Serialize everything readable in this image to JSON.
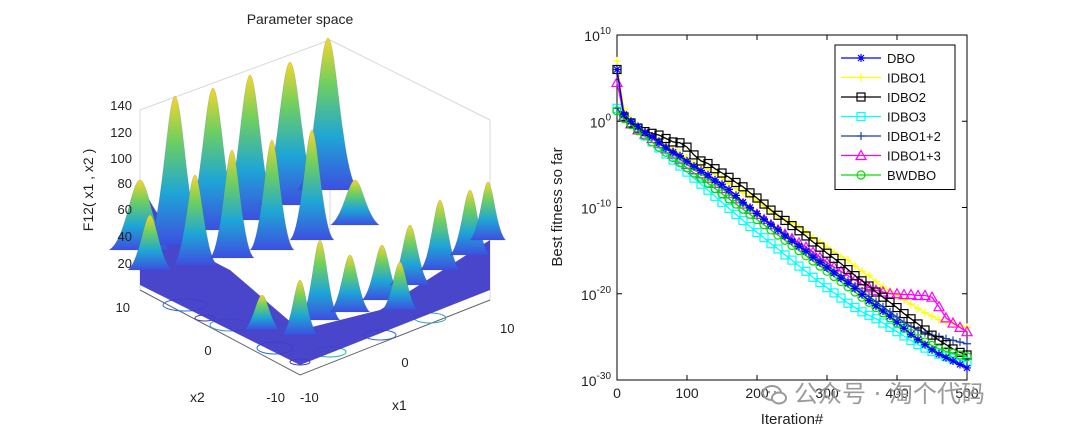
{
  "chart_data": [
    {
      "type": "surface3d",
      "title": "Parameter space",
      "zlabel": "F12( x1 , x2 )",
      "xlabel": "x1",
      "ylabel": "x2",
      "z_ticks": [
        20,
        40,
        60,
        80,
        100,
        120,
        140
      ],
      "x_ticks": [
        -10,
        0,
        10
      ],
      "y_ticks": [
        -10,
        0,
        10
      ],
      "zlim": [
        0,
        150
      ],
      "colormap": "parula",
      "contours_on_floor": true
    },
    {
      "type": "line",
      "yscale": "log",
      "xlabel": "Iteration#",
      "ylabel": "Best fitness so far",
      "xlim": [
        0,
        500
      ],
      "ylim_exp": [
        -30,
        10
      ],
      "x_ticks": [
        0,
        100,
        200,
        300,
        400,
        500
      ],
      "y_ticks": [
        {
          "base": "10",
          "exp": "10"
        },
        {
          "base": "10",
          "exp": "0"
        },
        {
          "base": "10",
          "exp": "-10"
        },
        {
          "base": "10",
          "exp": "-20"
        },
        {
          "base": "10",
          "exp": "-30"
        }
      ],
      "legend_position": "top-right",
      "x": [
        0,
        10,
        20,
        30,
        40,
        50,
        60,
        70,
        80,
        90,
        100,
        110,
        120,
        130,
        140,
        150,
        160,
        170,
        180,
        190,
        200,
        210,
        220,
        230,
        240,
        250,
        260,
        270,
        280,
        290,
        300,
        310,
        320,
        330,
        340,
        350,
        360,
        370,
        380,
        390,
        400,
        410,
        420,
        430,
        440,
        450,
        460,
        470,
        480,
        490,
        500
      ],
      "series": [
        {
          "name": "DBO",
          "color": "#0000ff",
          "marker": "star",
          "log10_values": [
            6.0,
            0.8,
            0.0,
            -0.6,
            -1.3,
            -1.8,
            -2.5,
            -3.1,
            -3.6,
            -4.0,
            -4.6,
            -5.2,
            -5.7,
            -6.2,
            -6.8,
            -7.3,
            -7.9,
            -8.6,
            -9.4,
            -10.0,
            -10.7,
            -11.4,
            -12.0,
            -12.6,
            -13.3,
            -13.9,
            -14.5,
            -15.1,
            -15.8,
            -16.4,
            -17.0,
            -17.6,
            -18.2,
            -18.8,
            -19.4,
            -20.1,
            -20.8,
            -21.4,
            -22.0,
            -22.6,
            -23.3,
            -24.0,
            -24.7,
            -25.3,
            -25.9,
            -26.5,
            -27.0,
            -27.4,
            -27.8,
            -28.2,
            -28.6
          ]
        },
        {
          "name": "IDBO1",
          "color": "#ffff00",
          "marker": "plus",
          "log10_values": [
            7.0,
            1.4,
            0.3,
            -0.5,
            -1.1,
            -1.7,
            -2.2,
            -2.7,
            -3.2,
            -3.7,
            -4.2,
            -4.8,
            -5.2,
            -5.6,
            -6.1,
            -6.6,
            -7.2,
            -7.8,
            -8.3,
            -8.7,
            -9.2,
            -9.8,
            -10.4,
            -11.0,
            -11.4,
            -11.8,
            -12.3,
            -12.9,
            -13.5,
            -14.0,
            -14.6,
            -15.2,
            -15.7,
            -16.1,
            -16.8,
            -17.4,
            -17.9,
            -18.6,
            -19.2,
            -19.7,
            -20.2,
            -20.7,
            -21.2,
            -21.7,
            -22.2,
            -22.6,
            -23.0,
            -23.3,
            -23.5,
            -23.7,
            -23.9
          ]
        },
        {
          "name": "IDBO2",
          "color": "#000000",
          "marker": "square",
          "log10_values": [
            6.0,
            0.5,
            -0.2,
            -0.8,
            -1.2,
            -1.4,
            -1.6,
            -2.0,
            -2.4,
            -2.5,
            -3.0,
            -3.9,
            -4.6,
            -4.9,
            -5.5,
            -6.0,
            -6.5,
            -7.1,
            -7.6,
            -8.3,
            -8.9,
            -9.6,
            -10.3,
            -10.9,
            -11.5,
            -12.1,
            -12.7,
            -13.3,
            -14.0,
            -14.6,
            -15.3,
            -15.9,
            -16.5,
            -17.2,
            -17.9,
            -18.5,
            -19.1,
            -19.8,
            -20.4,
            -21.0,
            -21.6,
            -22.3,
            -22.9,
            -23.5,
            -24.2,
            -24.8,
            -25.4,
            -25.9,
            -26.4,
            -26.8,
            -27.1
          ]
        },
        {
          "name": "IDBO3",
          "color": "#00ffff",
          "marker": "square",
          "log10_values": [
            1.5,
            0.5,
            -0.3,
            -1.0,
            -1.7,
            -2.4,
            -3.1,
            -3.8,
            -4.5,
            -5.2,
            -5.9,
            -6.6,
            -7.3,
            -8.0,
            -8.7,
            -9.4,
            -10.1,
            -10.8,
            -11.5,
            -12.2,
            -12.9,
            -13.5,
            -14.2,
            -14.8,
            -15.5,
            -16.1,
            -16.8,
            -17.4,
            -18.1,
            -18.7,
            -19.3,
            -19.9,
            -20.5,
            -21.1,
            -21.6,
            -22.1,
            -22.5,
            -22.9,
            -23.4,
            -23.9,
            -24.4,
            -24.9,
            -25.4,
            -25.9,
            -26.3,
            -26.7,
            -27.0,
            -27.3,
            -27.5,
            -27.7,
            -27.9
          ]
        },
        {
          "name": "IDBO1+2",
          "color": "#1f3fb0",
          "marker": "plus",
          "log10_values": [
            1.5,
            0.4,
            -0.2,
            -0.7,
            -1.2,
            -1.7,
            -2.3,
            -2.9,
            -3.5,
            -4.1,
            -4.7,
            -5.3,
            -5.9,
            -6.5,
            -7.1,
            -7.7,
            -8.3,
            -8.9,
            -9.5,
            -10.1,
            -10.7,
            -11.3,
            -11.9,
            -12.5,
            -13.1,
            -13.7,
            -14.3,
            -14.9,
            -15.5,
            -16.1,
            -16.7,
            -17.3,
            -17.9,
            -18.5,
            -19.1,
            -19.7,
            -20.3,
            -20.9,
            -21.5,
            -22.1,
            -22.7,
            -23.3,
            -23.8,
            -24.2,
            -24.5,
            -24.8,
            -25.0,
            -25.2,
            -25.4,
            -25.6,
            -25.8
          ]
        },
        {
          "name": "IDBO1+3",
          "color": "#ff00ff",
          "marker": "triangle",
          "log10_values": [
            4.5,
            0.6,
            -0.3,
            -1.0,
            -1.5,
            -2.0,
            -2.6,
            -3.2,
            -3.8,
            -4.4,
            -5.0,
            -5.6,
            -6.1,
            -6.6,
            -7.2,
            -7.8,
            -8.4,
            -9.0,
            -9.6,
            -10.2,
            -10.8,
            -11.4,
            -12.0,
            -12.6,
            -13.1,
            -13.6,
            -14.1,
            -14.6,
            -15.2,
            -15.8,
            -16.4,
            -16.9,
            -17.4,
            -17.9,
            -18.4,
            -18.9,
            -19.3,
            -19.6,
            -19.8,
            -20.0,
            -20.0,
            -20.1,
            -20.1,
            -20.2,
            -20.2,
            -20.4,
            -21.5,
            -22.8,
            -23.4,
            -23.9,
            -24.4
          ]
        },
        {
          "name": "BWDBO",
          "color": "#00dd00",
          "marker": "circle",
          "log10_values": [
            1.2,
            0.3,
            -0.4,
            -1.1,
            -1.7,
            -2.4,
            -3.0,
            -3.6,
            -4.2,
            -4.8,
            -5.4,
            -6.0,
            -6.6,
            -7.2,
            -7.8,
            -8.4,
            -9.0,
            -9.6,
            -10.2,
            -10.8,
            -11.4,
            -12.0,
            -12.6,
            -13.2,
            -13.8,
            -14.4,
            -15.0,
            -15.6,
            -16.2,
            -16.8,
            -17.4,
            -18.0,
            -18.6,
            -19.2,
            -19.8,
            -20.4,
            -21.0,
            -21.6,
            -22.2,
            -22.8,
            -23.4,
            -24.0,
            -24.6,
            -25.2,
            -25.6,
            -26.0,
            -26.4,
            -26.7,
            -26.9,
            -27.1,
            -27.3
          ]
        }
      ]
    }
  ],
  "watermark": {
    "text": "公众号 · 淘个代码",
    "icon": "wechat-icon"
  }
}
